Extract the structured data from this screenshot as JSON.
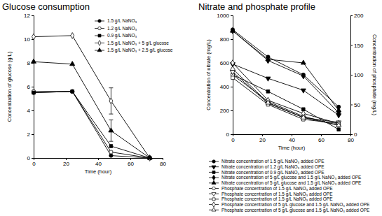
{
  "chart_data": [
    {
      "type": "line",
      "title": "Glucose consumption",
      "x_label": "Time (hour)",
      "y_label": "Concentration of glucose (g/L)",
      "x": [
        0,
        24,
        48,
        72
      ],
      "xlim": [
        0,
        80
      ],
      "xticks": [
        0,
        20,
        40,
        60,
        80
      ],
      "ylim": [
        0,
        12
      ],
      "yticks": [
        0,
        2,
        4,
        6,
        8,
        10,
        12
      ],
      "legend": "upper right",
      "series": [
        {
          "name": "1.5 g/L NaNO₃",
          "color": "#000000",
          "marker": "filled-circle",
          "values": [
            5.5,
            5.6,
            0.2,
            0
          ]
        },
        {
          "name": "1.2 g/L NaNO₃",
          "color": "#000000",
          "marker": "open-circle",
          "values": [
            5.6,
            5.6,
            0.5,
            0
          ]
        },
        {
          "name": "0.9 g/L NaNO₃",
          "color": "#000000",
          "marker": "filled-square",
          "values": [
            5.5,
            5.6,
            1.0,
            0
          ]
        },
        {
          "name": "1.5 g/L NaNO₃ + 5 g/L glucose",
          "color": "#000000",
          "marker": "open-diamond",
          "values": [
            10.2,
            10.3,
            4.8,
            0
          ],
          "errors": [
            null,
            null,
            1.1,
            null
          ]
        },
        {
          "name": "1.5 g/L NaNO₃ + 2.5 g/L glucose",
          "color": "#000000",
          "marker": "filled-triangle",
          "values": [
            8.1,
            7.9,
            2.3,
            0
          ],
          "errors": [
            null,
            null,
            0.9,
            null
          ]
        }
      ]
    },
    {
      "type": "line",
      "title": "Nitrate and phosphate profile",
      "x_label": "Time (hour)",
      "y_label": "Concentration of nitrate (mg/L)",
      "y2_label": "Concentration of phosphate (mg/L)",
      "x": [
        0,
        24,
        48,
        72
      ],
      "xlim": [
        0,
        80
      ],
      "xticks": [
        0,
        20,
        40,
        60,
        80
      ],
      "ylim": [
        0,
        1000
      ],
      "yticks": [
        0,
        200,
        400,
        600,
        800,
        1000
      ],
      "y2lim": [
        0,
        200
      ],
      "y2ticks": [
        0,
        50,
        100,
        150,
        200
      ],
      "legend": "bottom",
      "series": [
        {
          "name": "Nitrate concentration of 1.5 g/L NaNO₃ added OPE",
          "color": "#000000",
          "marker": "filled-circle",
          "values": [
            880,
            650,
            500,
            230
          ]
        },
        {
          "name": "Nitrate concentration of 1.2 g/L NaNO₃ added OPE",
          "color": "#000000",
          "marker": "filled-triangle-down",
          "values": [
            590,
            470,
            370,
            160
          ]
        },
        {
          "name": "Nitrate concentration of 0.9 g/L NaNO₃ added OPE",
          "color": "#000000",
          "marker": "filled-square",
          "values": [
            500,
            360,
            210,
            40
          ]
        },
        {
          "name": "Nitrate concentration of 5 g/L glucose and 1.5 g/L NaNO₃ added OPE",
          "color": "#000000",
          "marker": "filled-diamond",
          "values": [
            870,
            620,
            490,
            180
          ]
        },
        {
          "name": "Nitrate concentration of 5 g/L glucose and 1.5 g/L NaNO₃ added OPE",
          "color": "#000000",
          "marker": "filled-triangle",
          "values": [
            870,
            630,
            600,
            200
          ]
        },
        {
          "name": "Phosphate concentration of 1.5 g/L NaNO₃ added OPE",
          "color": "#000000",
          "marker": "open-circle",
          "axis": "y2",
          "values": [
            100,
            55,
            30,
            15
          ]
        },
        {
          "name": "Phosphate concentration of 1.5 g/L NaNO₃ added OPE",
          "color": "#000000",
          "marker": "open-triangle-down",
          "axis": "y2",
          "values": [
            105,
            52,
            28,
            20
          ]
        },
        {
          "name": "Phosphate concentration of 1.5 g/L NaNO₃ added OPE",
          "color": "#000000",
          "marker": "open-square",
          "axis": "y2",
          "values": [
            95,
            50,
            25,
            18
          ]
        },
        {
          "name": "Phosphate concentration of 5 g/L glucose and 1.5 g/L NaNO₃ added OPE",
          "color": "#000000",
          "marker": "open-diamond",
          "axis": "y2",
          "values": [
            120,
            57,
            35,
            18
          ]
        },
        {
          "name": "Phosphate concentration of 5 g/L glucose and 1.5 g/L NaNO₃ added OPE",
          "color": "#000000",
          "marker": "open-triangle",
          "axis": "y2",
          "values": [
            110,
            53,
            28,
            15
          ]
        }
      ]
    }
  ]
}
